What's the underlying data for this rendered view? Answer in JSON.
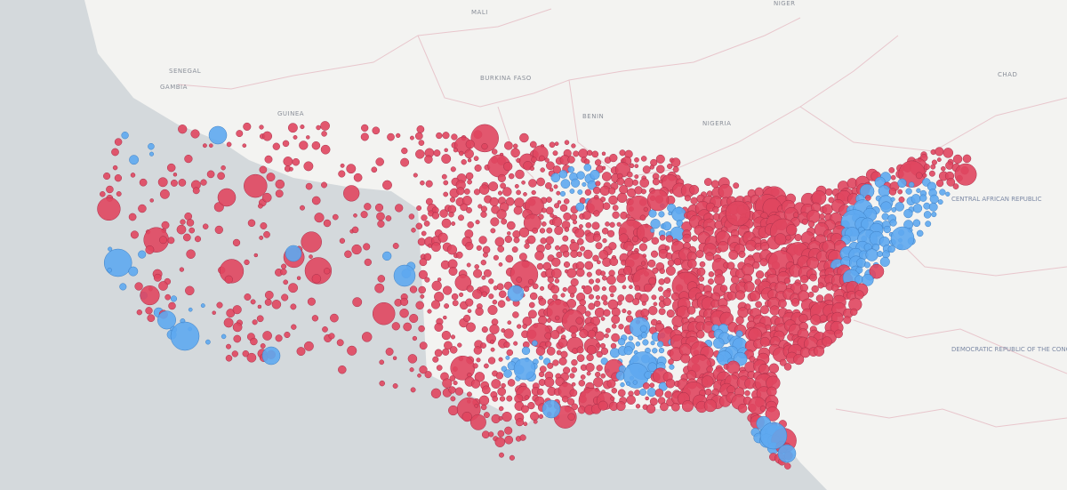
{
  "map": {
    "labels": [
      "MALI",
      "NIGER",
      "SENEGAL",
      "BURKINA FASO",
      "BENIN",
      "NIGERIA",
      "CHAD",
      "GUINEA",
      "GAMBIA",
      "CENTRAL AFRICAN REPUBLIC",
      "DEMOCRATIC REPUBLIC OF THE CONGO"
    ]
  }
}
